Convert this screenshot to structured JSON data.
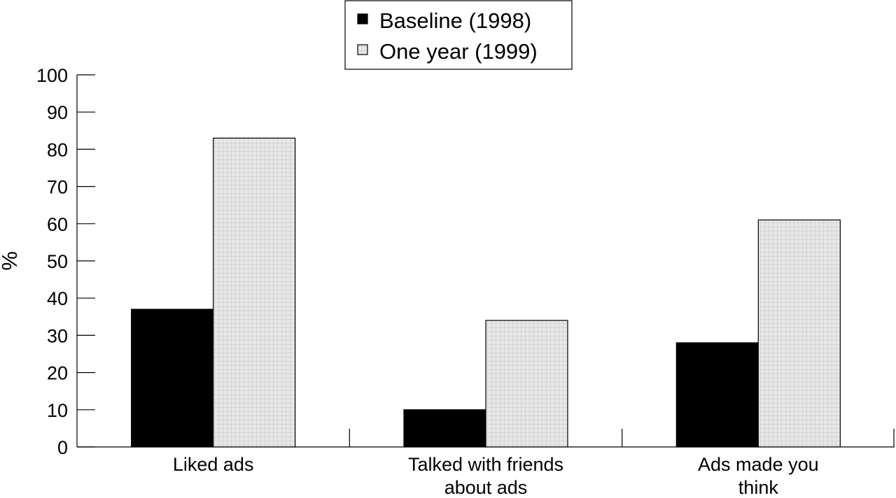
{
  "chart_data": {
    "type": "bar",
    "title": "",
    "xlabel": "",
    "ylabel": "%",
    "ylim": [
      0,
      100
    ],
    "yticks": [
      0,
      10,
      20,
      30,
      40,
      50,
      60,
      70,
      80,
      90,
      100
    ],
    "categories": [
      [
        "Liked ads"
      ],
      [
        "Talked with friends",
        "about ads"
      ],
      [
        "Ads made you",
        "think"
      ]
    ],
    "series": [
      {
        "name": "Baseline (1998)",
        "values": [
          37,
          10,
          28
        ],
        "color": "#000000",
        "pattern": "solid"
      },
      {
        "name": "One year (1999)",
        "values": [
          83,
          34,
          61
        ],
        "color": "#e6e6e6",
        "pattern": "light-grid"
      }
    ],
    "legend_position": "top-center",
    "grid": false
  }
}
